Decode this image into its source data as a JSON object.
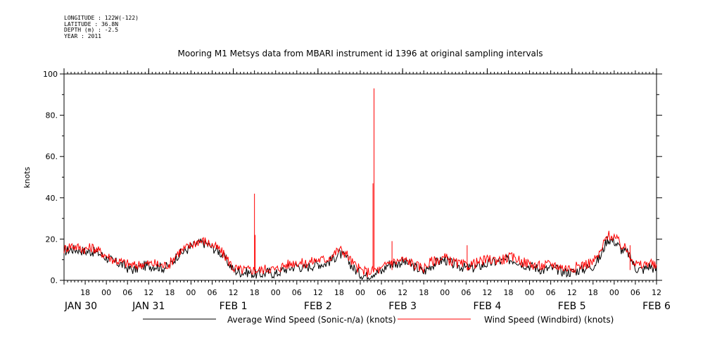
{
  "meta": {
    "longitude": "LONGITUDE : 122W(-122)",
    "latitude": "LATITUDE : 36.8N",
    "depth": "DEPTH (m) : -2.5",
    "year": "YEAR : 2011"
  },
  "chart_data": {
    "type": "line",
    "title": "Mooring M1 Metsys data from MBARI instrument id 1396 at original sampling intervals",
    "ylabel": "knots",
    "xlabel": "",
    "ylim": [
      0,
      100
    ],
    "yticks": [
      0,
      20,
      40,
      60,
      80,
      100
    ],
    "ytick_labels": [
      "0.",
      "20.",
      "40.",
      "60.",
      "80.",
      "100"
    ],
    "x_unit": "hours from 2011-01-30 12:00",
    "xlim": [
      0,
      168
    ],
    "xticks_hour_labels": [
      {
        "h": 6,
        "label": "18"
      },
      {
        "h": 12,
        "label": "00"
      },
      {
        "h": 18,
        "label": "06"
      },
      {
        "h": 24,
        "label": "12"
      },
      {
        "h": 30,
        "label": "18"
      },
      {
        "h": 36,
        "label": "00"
      },
      {
        "h": 42,
        "label": "06"
      },
      {
        "h": 48,
        "label": "12"
      },
      {
        "h": 54,
        "label": "18"
      },
      {
        "h": 60,
        "label": "00"
      },
      {
        "h": 66,
        "label": "06"
      },
      {
        "h": 72,
        "label": "12"
      },
      {
        "h": 78,
        "label": "18"
      },
      {
        "h": 84,
        "label": "00"
      },
      {
        "h": 90,
        "label": "06"
      },
      {
        "h": 96,
        "label": "12"
      },
      {
        "h": 102,
        "label": "18"
      },
      {
        "h": 108,
        "label": "00"
      },
      {
        "h": 114,
        "label": "06"
      },
      {
        "h": 120,
        "label": "12"
      },
      {
        "h": 126,
        "label": "18"
      },
      {
        "h": 132,
        "label": "00"
      },
      {
        "h": 138,
        "label": "06"
      },
      {
        "h": 144,
        "label": "12"
      },
      {
        "h": 150,
        "label": "18"
      },
      {
        "h": 156,
        "label": "00"
      },
      {
        "h": 162,
        "label": "06"
      },
      {
        "h": 168,
        "label": "12"
      }
    ],
    "day_labels": [
      {
        "h": 0,
        "label": "JAN 30"
      },
      {
        "h": 24,
        "label": "JAN 31"
      },
      {
        "h": 48,
        "label": "FEB  1"
      },
      {
        "h": 72,
        "label": "FEB  2"
      },
      {
        "h": 96,
        "label": "FEB  3"
      },
      {
        "h": 120,
        "label": "FEB  4"
      },
      {
        "h": 144,
        "label": "FEB  5"
      },
      {
        "h": 168,
        "label": "FEB  6"
      }
    ],
    "series": [
      {
        "name": "Average Wind Speed (Sonic-n/a) (knots)",
        "color": "#000000",
        "x": [
          0,
          2,
          4,
          6,
          8,
          10,
          12,
          14,
          16,
          18,
          20,
          22,
          24,
          26,
          28,
          30,
          32,
          34,
          36,
          38,
          40,
          42,
          44,
          46,
          48,
          50,
          52,
          54,
          56,
          58,
          60,
          62,
          64,
          66,
          68,
          70,
          72,
          74,
          76,
          78,
          80,
          82,
          84,
          86,
          88,
          90,
          92,
          94,
          96,
          98,
          100,
          102,
          104,
          106,
          108,
          110,
          112,
          114,
          116,
          118,
          120,
          122,
          124,
          126,
          128,
          130,
          132,
          134,
          136,
          138,
          140,
          142,
          144,
          146,
          148,
          150,
          152,
          154,
          156,
          158,
          160,
          162,
          164,
          166,
          168
        ],
        "y": [
          14,
          15,
          15,
          14,
          14,
          13,
          11,
          9,
          8,
          6,
          5,
          7,
          7,
          7,
          6,
          7,
          12,
          14,
          16,
          18,
          18,
          16,
          14,
          10,
          5,
          4,
          4,
          3,
          3,
          4,
          3,
          5,
          6,
          7,
          6,
          7,
          8,
          8,
          10,
          13,
          11,
          6,
          3,
          2,
          4,
          4,
          8,
          8,
          9,
          8,
          6,
          4,
          7,
          9,
          10,
          8,
          7,
          6,
          6,
          7,
          8,
          9,
          9,
          10,
          10,
          8,
          7,
          6,
          5,
          6,
          5,
          4,
          4,
          5,
          6,
          7,
          11,
          20,
          19,
          15,
          13,
          6,
          5,
          7,
          5
        ]
      },
      {
        "name": "Wind Speed (Windbird) (knots)",
        "color": "#ff0000",
        "x": [
          0,
          2,
          4,
          6,
          8,
          10,
          12,
          14,
          16,
          18,
          20,
          22,
          24,
          26,
          28,
          30,
          32,
          34,
          36,
          38,
          40,
          42,
          44,
          46,
          48,
          50,
          52,
          54,
          56,
          58,
          60,
          62,
          64,
          66,
          68,
          70,
          72,
          74,
          76,
          78,
          80,
          82,
          84,
          86,
          88,
          90,
          92,
          94,
          96,
          98,
          100,
          102,
          104,
          106,
          108,
          110,
          112,
          114,
          116,
          118,
          120,
          122,
          124,
          126,
          128,
          130,
          132,
          134,
          136,
          138,
          140,
          142,
          144,
          146,
          148,
          150,
          152,
          154,
          156,
          158,
          160,
          162,
          164,
          166,
          168
        ],
        "y": [
          15,
          17,
          16,
          15,
          16,
          14,
          12,
          10,
          9,
          8,
          7,
          8,
          8,
          8,
          7,
          8,
          13,
          15,
          17,
          19,
          19,
          17,
          15,
          11,
          6,
          5,
          5,
          5,
          5,
          6,
          5,
          7,
          8,
          9,
          8,
          9,
          10,
          10,
          12,
          15,
          13,
          8,
          5,
          4,
          5,
          5,
          9,
          9,
          10,
          9,
          7,
          6,
          9,
          10,
          11,
          9,
          8,
          7,
          8,
          9,
          10,
          10,
          10,
          11,
          11,
          9,
          8,
          7,
          7,
          8,
          7,
          6,
          6,
          7,
          8,
          9,
          13,
          22,
          21,
          17,
          14,
          8,
          7,
          9,
          6
        ]
      }
    ],
    "spikes": [
      {
        "x": 54,
        "y": 42
      },
      {
        "x": 54.2,
        "y": 22
      },
      {
        "x": 87.6,
        "y": 47
      },
      {
        "x": 87.9,
        "y": 93
      },
      {
        "x": 93,
        "y": 19
      },
      {
        "x": 114.3,
        "y": 17
      },
      {
        "x": 160.5,
        "y": 17
      }
    ],
    "grid": false,
    "legend_position": "bottom"
  }
}
